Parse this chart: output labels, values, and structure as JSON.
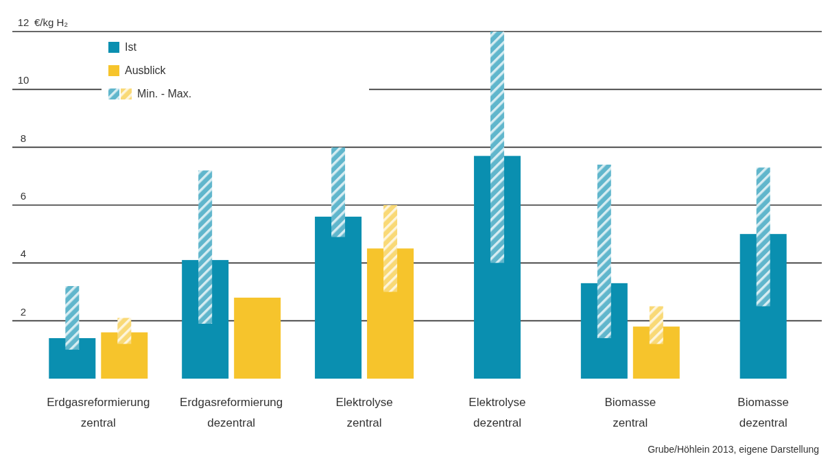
{
  "chart_data": {
    "type": "bar",
    "ylabel": "€/kg H₂",
    "categories": [
      "Erdgasreformierung zentral",
      "Erdgasreformierung dezentral",
      "Elektrolyse zentral",
      "Elektrolyse dezentral",
      "Biomasse zentral",
      "Biomasse dezentral"
    ],
    "series": [
      {
        "name": "Ist",
        "color": "#0a8fb0",
        "values": [
          1.4,
          4.1,
          5.6,
          7.7,
          3.3,
          5.0
        ],
        "errors": [
          [
            1.0,
            3.2
          ],
          [
            1.9,
            7.2
          ],
          [
            4.9,
            8.0
          ],
          [
            4.0,
            12
          ],
          [
            1.4,
            7.4
          ],
          [
            2.5,
            7.3
          ]
        ]
      },
      {
        "name": "Ausblick",
        "color": "#f6c42c",
        "values": [
          1.6,
          2.8,
          4.5,
          null,
          1.8,
          null
        ],
        "errors": [
          [
            1.2,
            2.1
          ],
          null,
          [
            3.0,
            6.0
          ],
          null,
          [
            1.2,
            2.5
          ],
          null
        ]
      }
    ],
    "ylim": [
      0,
      12
    ],
    "yticks": [
      2,
      4,
      6,
      8,
      10,
      12
    ],
    "grid": "y",
    "legend": "top left",
    "annotations": [
      "Min. - Max.",
      "Grube/Höhlein 2013, eigene Darstellung"
    ]
  }
}
